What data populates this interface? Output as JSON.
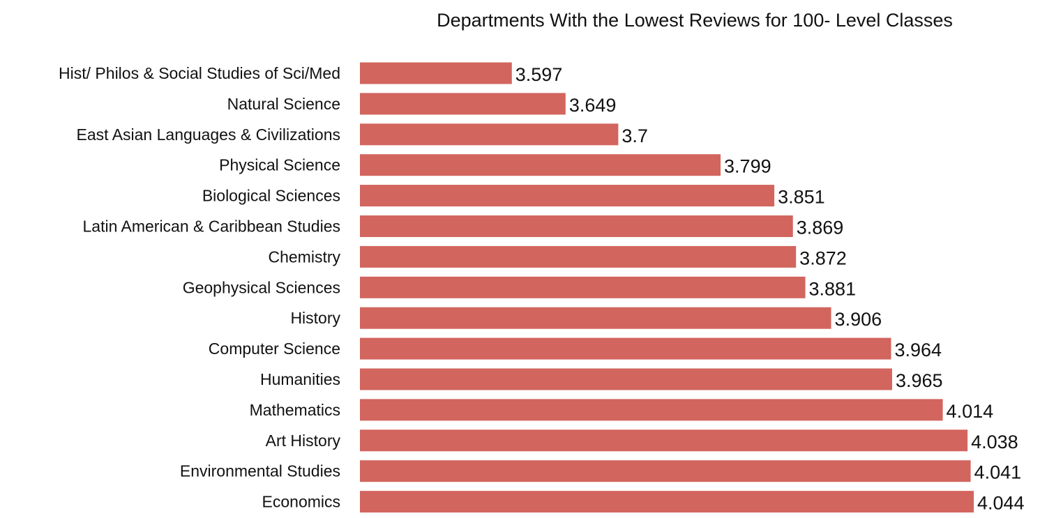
{
  "chart_data": {
    "type": "bar",
    "orientation": "horizontal",
    "title": "Departments With the Lowest Reviews for 100- Level Classes",
    "xlabel": "",
    "ylabel": "",
    "categories": [
      "Hist/ Philos & Social Studies of Sci/Med",
      "Natural Science",
      "East Asian Languages & Civilizations",
      "Physical Science",
      "Biological Sciences",
      "Latin American & Caribbean Studies",
      "Chemistry",
      "Geophysical Sciences",
      "History",
      "Computer Science",
      "Humanities",
      "Mathematics",
      "Art History",
      "Environmental Studies",
      "Economics"
    ],
    "values": [
      3.597,
      3.649,
      3.7,
      3.799,
      3.851,
      3.869,
      3.872,
      3.881,
      3.906,
      3.964,
      3.965,
      4.014,
      4.038,
      4.041,
      4.044
    ],
    "value_labels": [
      "3.597",
      "3.649",
      "3.7",
      "3.799",
      "3.851",
      "3.869",
      "3.872",
      "3.881",
      "3.906",
      "3.964",
      "3.965",
      "4.014",
      "4.038",
      "4.041",
      "4.044"
    ],
    "xlim": [
      3.45,
      4.044
    ],
    "grid": false,
    "legend": "none",
    "bar_color": "#d2655e"
  }
}
